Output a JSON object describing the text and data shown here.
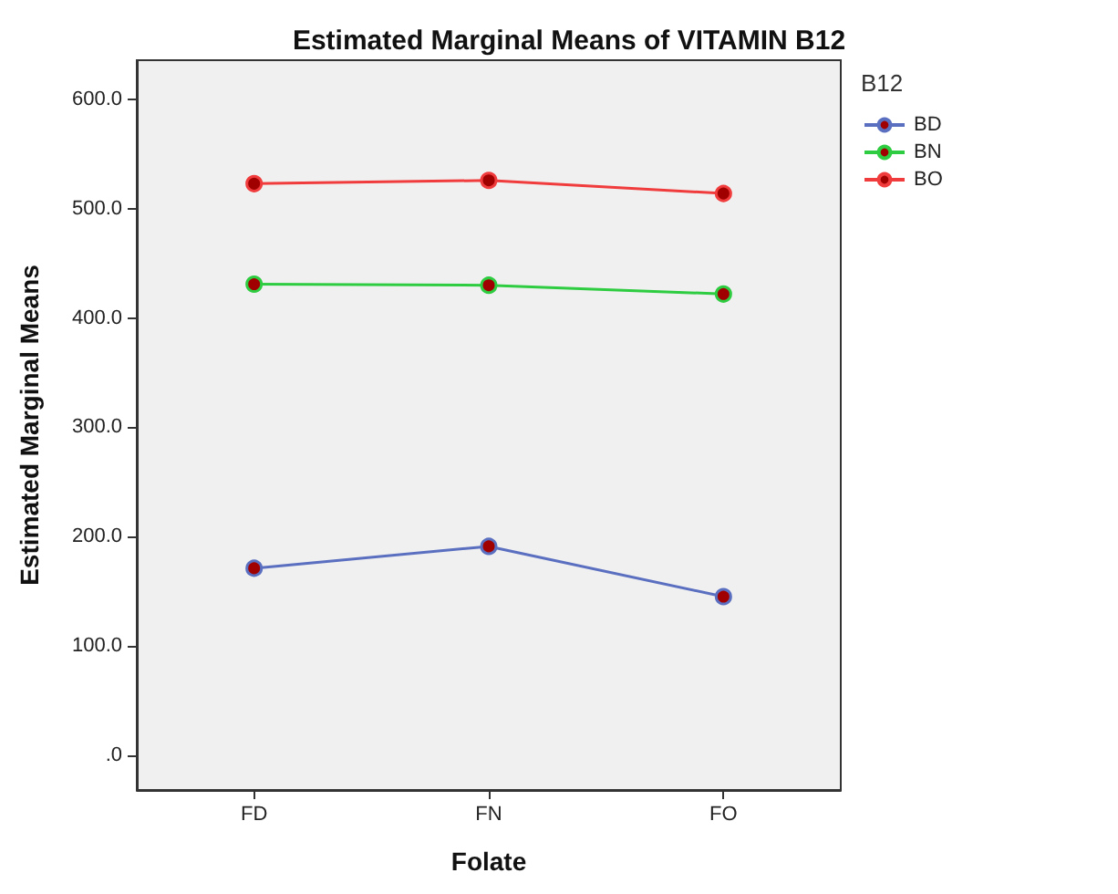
{
  "chart_data": {
    "type": "line",
    "title": "Estimated Marginal Means of VITAMIN B12",
    "xlabel": "Folate",
    "ylabel": "Estimated Marginal Means",
    "legend_title": "B12",
    "categories": [
      "FD",
      "FN",
      "FO"
    ],
    "series": [
      {
        "name": "BD",
        "color": "#5b6fc0",
        "values": [
          171,
          191,
          145
        ]
      },
      {
        "name": "BN",
        "color": "#2ecc40",
        "values": [
          431,
          430,
          422
        ]
      },
      {
        "name": "BO",
        "color": "#f03c3c",
        "values": [
          523,
          526,
          514
        ]
      }
    ],
    "ylim": [
      -32,
      636
    ],
    "yticks": [
      {
        "value": 0,
        "label": ".0"
      },
      {
        "value": 100,
        "label": "100.0"
      },
      {
        "value": 200,
        "label": "200.0"
      },
      {
        "value": 300,
        "label": "300.0"
      },
      {
        "value": 400,
        "label": "400.0"
      },
      {
        "value": 500,
        "label": "500.0"
      },
      {
        "value": 600,
        "label": "600.0"
      }
    ],
    "grid": false,
    "legend": "top right",
    "marker": "circle"
  }
}
